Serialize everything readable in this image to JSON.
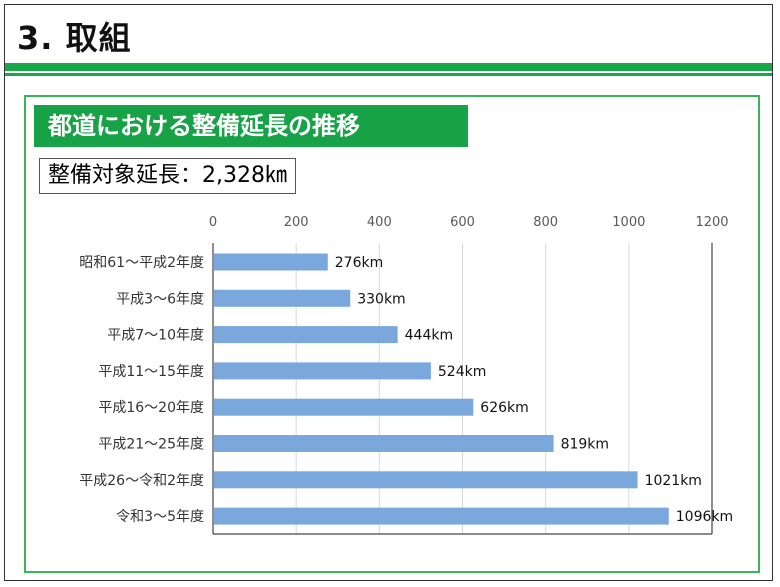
{
  "slide": {
    "title": "3. 取組"
  },
  "section": {
    "title": "都道における整備延長の推移",
    "total_label": "整備対象延長：2,328㎞"
  },
  "colors": {
    "green": "#17a247",
    "bar": "#7aa7dc"
  },
  "chart_data": {
    "type": "bar",
    "orientation": "horizontal",
    "title": "",
    "xlabel": "",
    "ylabel": "",
    "xlim": [
      0,
      1200
    ],
    "x_ticks": [
      "0",
      "200",
      "400",
      "600",
      "800",
      "1000",
      "1200"
    ],
    "grid": true,
    "categories": [
      "昭和61～平成2年度",
      "平成3～6年度",
      "平成7～10年度",
      "平成11～15年度",
      "平成16～20年度",
      "平成21～25年度",
      "平成26～令和2年度",
      "令和3～5年度"
    ],
    "values": [
      276,
      330,
      444,
      524,
      626,
      819,
      1021,
      1096
    ],
    "data_labels": [
      "276km",
      "330km",
      "444km",
      "524km",
      "626km",
      "819km",
      "1021km",
      "1096km"
    ]
  }
}
